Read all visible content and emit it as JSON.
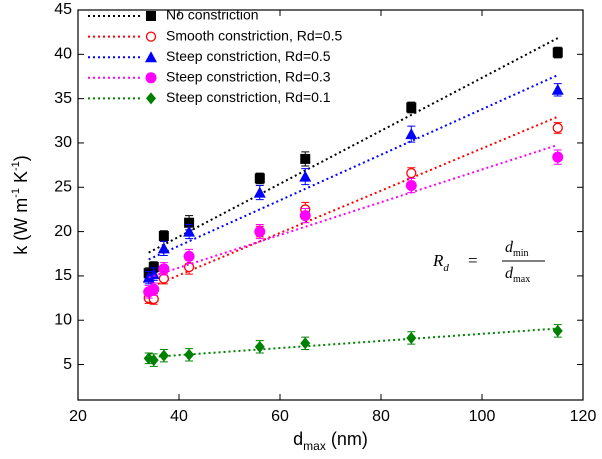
{
  "chart_data": {
    "type": "scatter",
    "x_label": [
      "d",
      "max",
      " (nm)"
    ],
    "y_label": [
      "k (W m",
      "-1",
      " K",
      "-1",
      ")"
    ],
    "xlim": [
      20,
      120
    ],
    "xticks": [
      20,
      40,
      60,
      80,
      100,
      120
    ],
    "ylim": [
      1,
      45
    ],
    "yticks": [
      5,
      10,
      15,
      20,
      25,
      30,
      35,
      40,
      45
    ],
    "legend": "top-left",
    "annotation": {
      "lhs": "R",
      "lhs_sub": "d",
      "eq": "=",
      "num": "d",
      "num_sub": "min",
      "den": "d",
      "den_sub": "max"
    },
    "series": [
      {
        "name": "No constriction",
        "color": "#000000",
        "marker": "square",
        "x": [
          34,
          35,
          37,
          42,
          56,
          65,
          86,
          115
        ],
        "values": [
          15.3,
          16.0,
          19.5,
          21.0,
          26.0,
          28.2,
          34.0,
          40.2
        ],
        "errors": [
          0.6,
          0.6,
          0.6,
          0.8,
          0.6,
          0.8,
          0.6,
          0.6
        ]
      },
      {
        "name": "Smooth constriction, Rd=0.5",
        "color": "#ff0000",
        "marker": "open-circle",
        "x": [
          34,
          35,
          37,
          42,
          56,
          65,
          86,
          115
        ],
        "values": [
          12.5,
          12.4,
          14.7,
          16.0,
          20.0,
          22.5,
          26.6,
          31.7
        ],
        "errors": [
          0.6,
          0.6,
          0.6,
          0.8,
          0.6,
          0.8,
          0.6,
          0.6
        ]
      },
      {
        "name": "Steep constriction, Rd=0.5",
        "color": "#0000ff",
        "marker": "triangle",
        "x": [
          34,
          35,
          37,
          42,
          56,
          65,
          86,
          115
        ],
        "values": [
          14.8,
          15.2,
          18.1,
          20.0,
          24.4,
          26.2,
          31.0,
          36.0
        ],
        "errors": [
          0.7,
          0.7,
          0.8,
          0.8,
          0.8,
          0.9,
          0.9,
          0.7
        ]
      },
      {
        "name": "Steep constriction, Rd=0.3",
        "color": "#ff00ff",
        "marker": "circle",
        "x": [
          34,
          35,
          37,
          42,
          56,
          65,
          86,
          115
        ],
        "values": [
          13.2,
          13.5,
          15.8,
          17.2,
          20.0,
          21.8,
          25.2,
          28.4
        ],
        "errors": [
          0.7,
          0.7,
          0.7,
          0.8,
          0.8,
          0.8,
          0.8,
          0.8
        ]
      },
      {
        "name": "Steep constriction, Rd=0.1",
        "color": "#008000",
        "marker": "diamond",
        "x": [
          34,
          35,
          37,
          42,
          56,
          65,
          86,
          115
        ],
        "values": [
          5.7,
          5.5,
          6.0,
          6.1,
          7.0,
          7.4,
          8.0,
          8.8
        ],
        "errors": [
          0.6,
          0.7,
          0.7,
          0.7,
          0.7,
          0.7,
          0.7,
          0.7
        ]
      }
    ]
  }
}
